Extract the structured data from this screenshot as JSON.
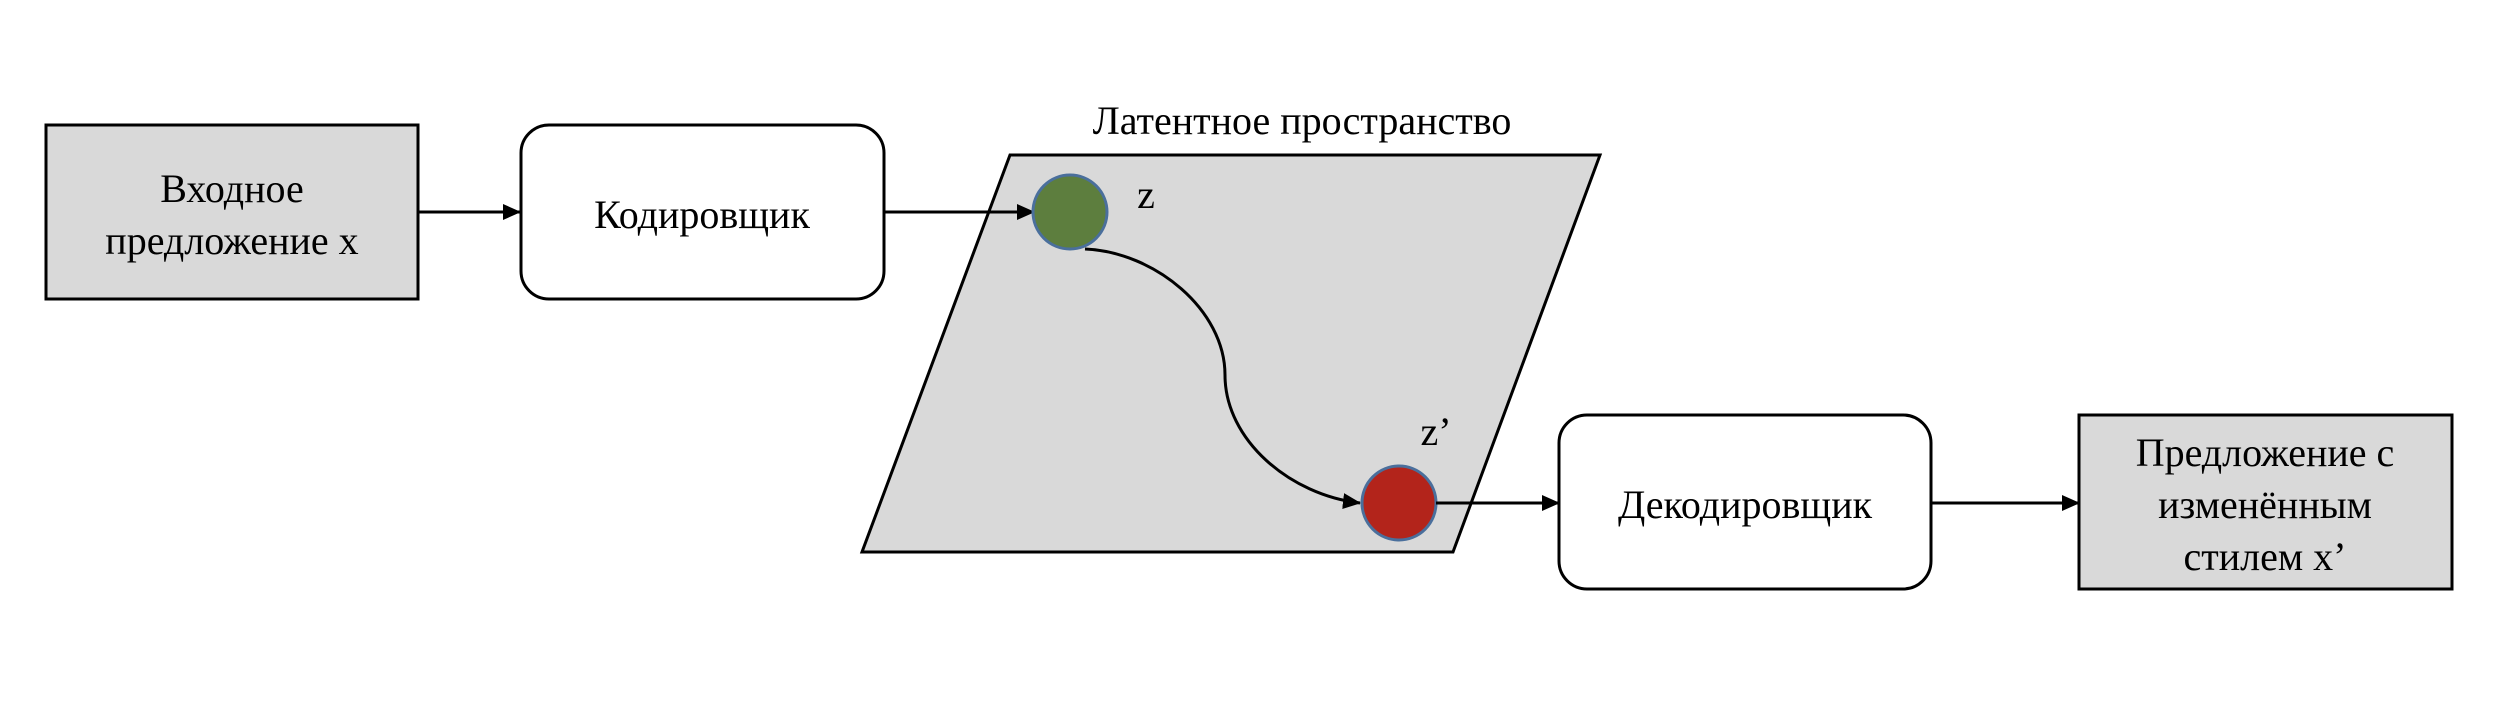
{
  "colors": {
    "gray_fill": "#d9d9d9",
    "white_fill": "#ffffff",
    "stroke": "#000000",
    "z_point": "#5d7e3e",
    "z_prime_point": "#b3241b",
    "point_outline": "#4a6f9c"
  },
  "input_box": {
    "lines": [
      "Входное",
      "предложение x"
    ]
  },
  "encoder": {
    "label": "Кодировщик"
  },
  "latent_space": {
    "title": "Латентное пространство"
  },
  "z_point": {
    "label": "z"
  },
  "z_prime_point": {
    "label": "z’"
  },
  "decoder": {
    "label": "Декодировщик"
  },
  "output_box": {
    "lines": [
      "Предложение с",
      "изменённым",
      "стилем x’"
    ]
  }
}
